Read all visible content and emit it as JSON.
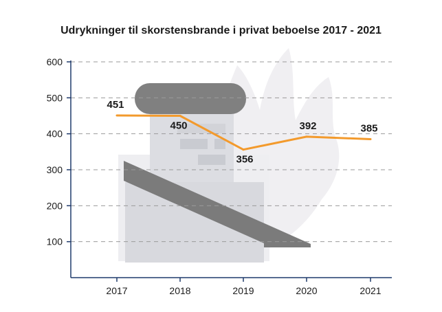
{
  "chart_data": {
    "type": "line",
    "title": "Udrykninger til skorstensbrande i privat beboelse 2017 - 2021",
    "xlabel": "",
    "ylabel": "",
    "categories": [
      "2017",
      "2018",
      "2019",
      "2020",
      "2021"
    ],
    "series": [
      {
        "values": [
          451,
          450,
          356,
          392,
          385
        ],
        "color": "#f39a2c"
      }
    ],
    "ylim": [
      0,
      600
    ],
    "yticks": [
      100,
      200,
      300,
      400,
      500,
      600
    ],
    "grid": true,
    "gridStyle": "dashed",
    "legend": "none",
    "background_illustration": "chimney-with-flame"
  }
}
